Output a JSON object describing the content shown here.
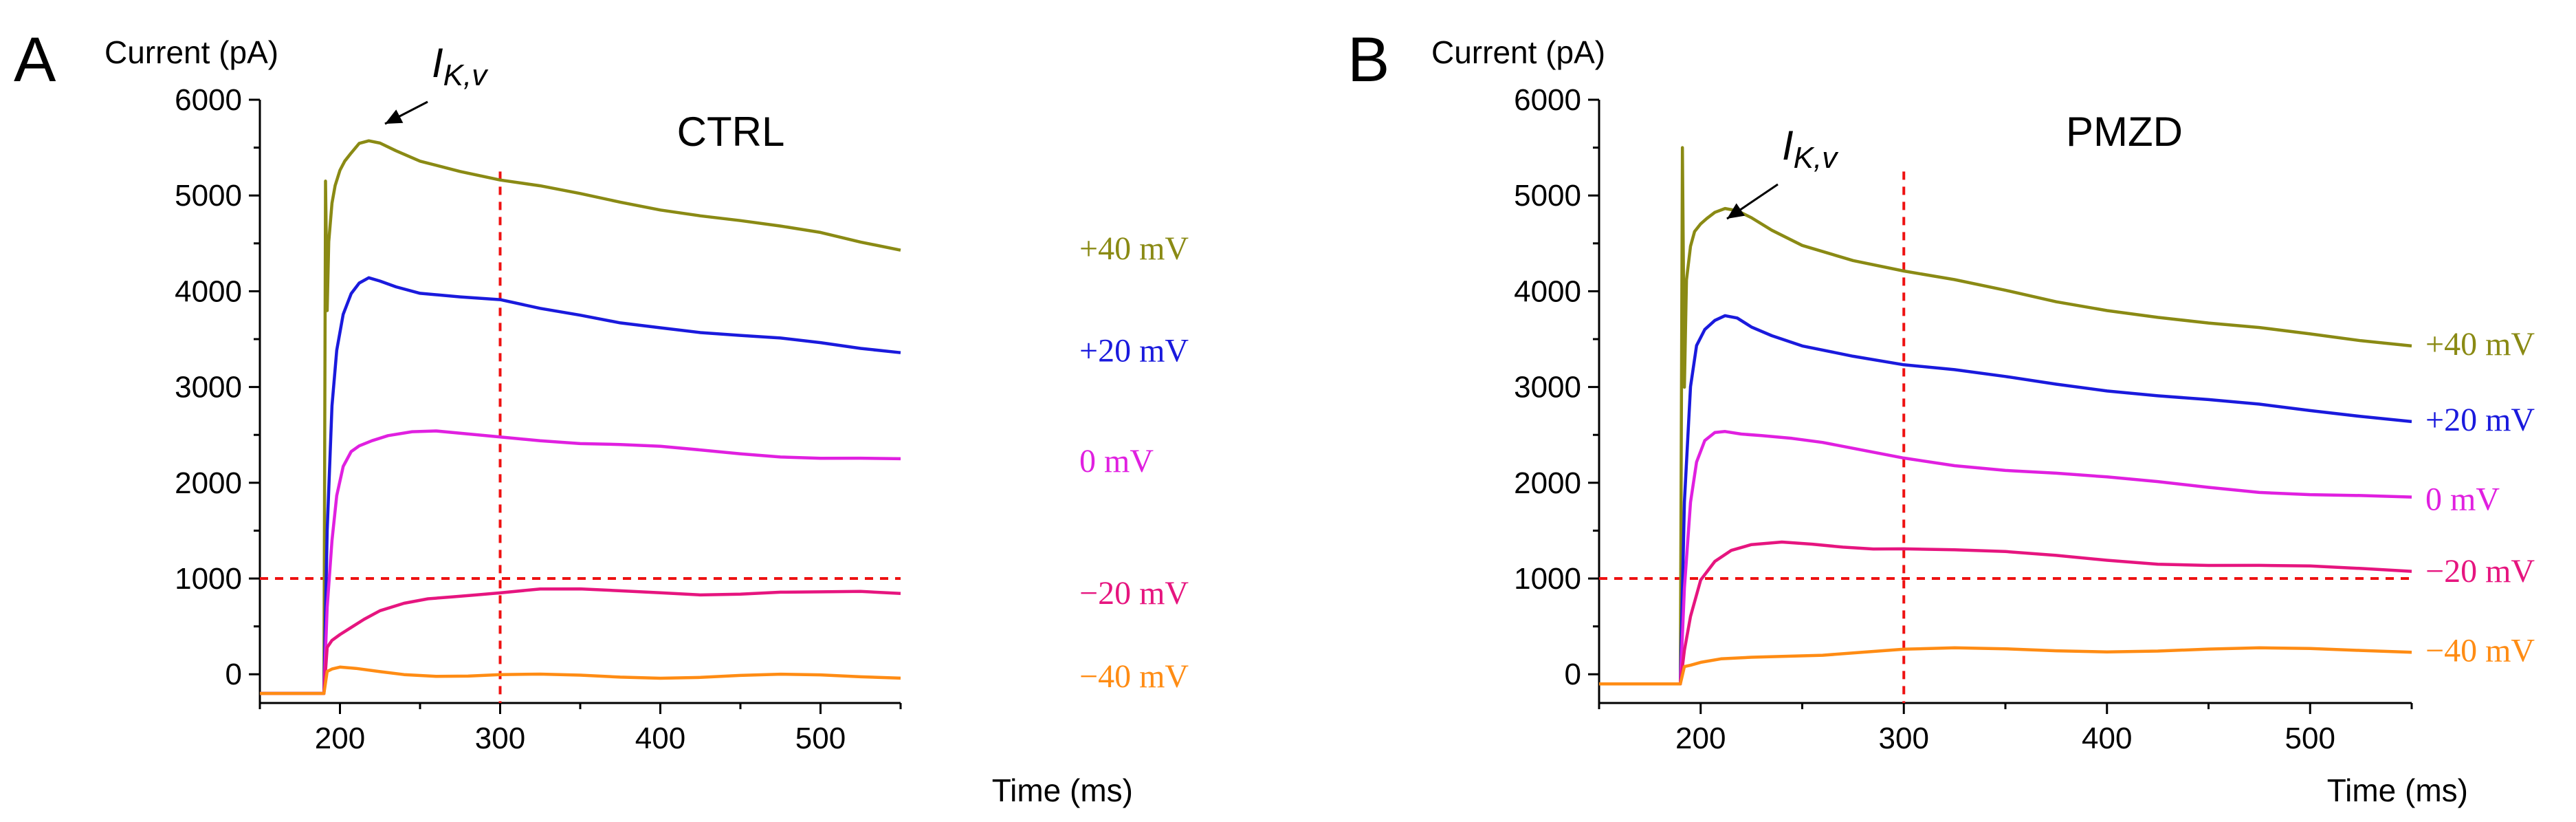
{
  "chart_data": [
    {
      "panel": "A",
      "type": "line",
      "title": "CTRL",
      "ylabel": "Current (pA)",
      "xlabel": "Time (ms)",
      "xlim": [
        150,
        550
      ],
      "ylim": [
        -300,
        6000
      ],
      "xticks": [
        200,
        300,
        400,
        500
      ],
      "yticks": [
        0,
        1000,
        2000,
        3000,
        4000,
        5000,
        6000
      ],
      "annotation": {
        "base": "I",
        "subscript": "K,v"
      },
      "reference_lines": {
        "x": 300,
        "y": 1000
      },
      "series": [
        {
          "name": "+40 mV",
          "color": "#8a8a14",
          "x": [
            150,
            190,
            191,
            192,
            193,
            195,
            197,
            200,
            203,
            207,
            212,
            218,
            225,
            235,
            250,
            275,
            300,
            325,
            350,
            375,
            400,
            425,
            450,
            475,
            500,
            525,
            550
          ],
          "y": [
            -200,
            -200,
            5150,
            3800,
            4500,
            4900,
            5100,
            5280,
            5380,
            5450,
            5530,
            5550,
            5540,
            5480,
            5380,
            5260,
            5150,
            5080,
            5010,
            4940,
            4870,
            4800,
            4730,
            4660,
            4600,
            4520,
            4450
          ]
        },
        {
          "name": "+20 mV",
          "color": "#1a1add",
          "x": [
            150,
            190,
            192,
            195,
            198,
            202,
            207,
            212,
            218,
            225,
            235,
            250,
            275,
            300,
            325,
            350,
            375,
            400,
            425,
            450,
            475,
            500,
            525,
            550
          ],
          "y": [
            -200,
            -200,
            1500,
            2800,
            3400,
            3780,
            3980,
            4070,
            4120,
            4100,
            4060,
            4000,
            3950,
            3900,
            3800,
            3740,
            3680,
            3640,
            3580,
            3530,
            3490,
            3450,
            3410,
            3380
          ]
        },
        {
          "name": "0 mV",
          "color": "#e020e0",
          "x": [
            150,
            190,
            192,
            195,
            198,
            202,
            207,
            212,
            220,
            230,
            245,
            260,
            280,
            300,
            325,
            350,
            375,
            400,
            425,
            450,
            475,
            500,
            525,
            550
          ],
          "y": [
            -200,
            -200,
            700,
            1400,
            1850,
            2150,
            2320,
            2400,
            2460,
            2500,
            2520,
            2520,
            2500,
            2490,
            2460,
            2420,
            2390,
            2360,
            2330,
            2310,
            2290,
            2270,
            2250,
            2230
          ]
        },
        {
          "name": "−20 mV",
          "color": "#e6157f",
          "x": [
            150,
            190,
            192,
            195,
            200,
            207,
            215,
            225,
            240,
            255,
            270,
            285,
            300,
            325,
            350,
            375,
            400,
            425,
            450,
            475,
            500,
            525,
            550
          ],
          "y": [
            -200,
            -200,
            280,
            350,
            430,
            510,
            580,
            650,
            720,
            780,
            820,
            850,
            860,
            880,
            870,
            860,
            860,
            850,
            850,
            850,
            840,
            850,
            850
          ]
        },
        {
          "name": "−40 mV",
          "color": "#ff8c14",
          "x": [
            150,
            190,
            192,
            195,
            200,
            210,
            225,
            240,
            260,
            280,
            300,
            325,
            350,
            375,
            400,
            425,
            450,
            475,
            500,
            525,
            550
          ],
          "y": [
            -200,
            -200,
            30,
            60,
            60,
            40,
            20,
            10,
            0,
            -10,
            -15,
            -20,
            -20,
            -20,
            -20,
            -20,
            -20,
            -20,
            -20,
            -20,
            -20
          ]
        }
      ]
    },
    {
      "panel": "B",
      "type": "line",
      "title": "PMZD",
      "ylabel": "Current (pA)",
      "xlabel": "Time (ms)",
      "xlim": [
        150,
        550
      ],
      "ylim": [
        -300,
        6000
      ],
      "xticks": [
        200,
        300,
        400,
        500
      ],
      "yticks": [
        0,
        1000,
        2000,
        3000,
        4000,
        5000,
        6000
      ],
      "annotation": {
        "base": "I",
        "subscript": "K,v"
      },
      "reference_lines": {
        "x": 300,
        "y": 1000
      },
      "series": [
        {
          "name": "+40 mV",
          "color": "#8a8a14",
          "x": [
            150,
            190,
            191,
            192,
            193,
            195,
            197,
            200,
            203,
            207,
            212,
            218,
            225,
            235,
            250,
            275,
            300,
            325,
            350,
            375,
            400,
            425,
            450,
            475,
            500,
            525,
            550
          ],
          "y": [
            -100,
            -100,
            5500,
            3000,
            4100,
            4450,
            4620,
            4720,
            4780,
            4830,
            4850,
            4820,
            4760,
            4650,
            4500,
            4330,
            4200,
            4100,
            4000,
            3900,
            3820,
            3740,
            3660,
            3600,
            3540,
            3490,
            3450
          ]
        },
        {
          "name": "+20 mV",
          "color": "#1a1add",
          "x": [
            150,
            190,
            192,
            195,
            198,
            202,
            207,
            212,
            218,
            225,
            235,
            250,
            275,
            300,
            325,
            350,
            375,
            400,
            425,
            450,
            475,
            500,
            525,
            550
          ],
          "y": [
            -100,
            -100,
            1800,
            3000,
            3450,
            3620,
            3700,
            3730,
            3700,
            3620,
            3550,
            3450,
            3330,
            3220,
            3160,
            3100,
            3040,
            2980,
            2920,
            2860,
            2800,
            2740,
            2700,
            2660
          ]
        },
        {
          "name": "0 mV",
          "color": "#e020e0",
          "x": [
            150,
            190,
            192,
            195,
            198,
            202,
            207,
            212,
            220,
            230,
            245,
            260,
            280,
            300,
            325,
            350,
            375,
            400,
            425,
            450,
            475,
            500,
            525,
            550
          ],
          "y": [
            -100,
            -100,
            900,
            1800,
            2200,
            2420,
            2520,
            2550,
            2530,
            2500,
            2450,
            2400,
            2330,
            2270,
            2200,
            2140,
            2090,
            2040,
            2000,
            1960,
            1920,
            1890,
            1860,
            1830
          ]
        },
        {
          "name": "−20 mV",
          "color": "#e6157f",
          "x": [
            150,
            190,
            192,
            195,
            200,
            207,
            215,
            225,
            240,
            255,
            270,
            285,
            300,
            325,
            350,
            375,
            400,
            425,
            450,
            475,
            500,
            525,
            550
          ],
          "y": [
            -100,
            -100,
            250,
            600,
            1000,
            1200,
            1300,
            1340,
            1360,
            1350,
            1340,
            1330,
            1320,
            1290,
            1260,
            1230,
            1200,
            1170,
            1150,
            1130,
            1110,
            1090,
            1080
          ]
        },
        {
          "name": "−40 mV",
          "color": "#ff8c14",
          "x": [
            150,
            190,
            192,
            195,
            200,
            210,
            225,
            240,
            260,
            280,
            300,
            325,
            350,
            375,
            400,
            425,
            450,
            475,
            500,
            525,
            550
          ],
          "y": [
            -100,
            -100,
            80,
            100,
            110,
            140,
            170,
            200,
            220,
            240,
            250,
            255,
            255,
            255,
            255,
            255,
            255,
            255,
            255,
            255,
            250
          ]
        }
      ]
    }
  ]
}
